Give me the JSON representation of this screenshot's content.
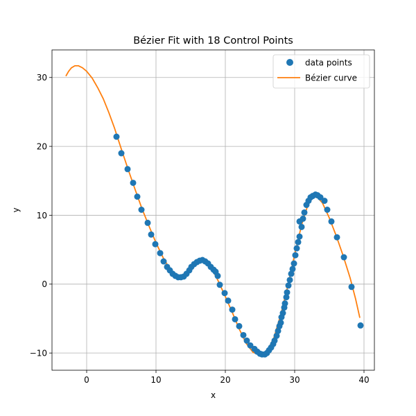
{
  "chart_data": {
    "type": "scatter",
    "title": "Bézier Fit with 18 Control Points",
    "xlabel": "x",
    "ylabel": "y",
    "xlim": [
      -5,
      41.5
    ],
    "ylim": [
      -12.5,
      34
    ],
    "x_ticks": [
      0,
      10,
      20,
      30,
      40
    ],
    "x_tick_labels": [
      "0",
      "10",
      "20",
      "30",
      "40"
    ],
    "y_ticks": [
      -10,
      0,
      10,
      20,
      30
    ],
    "y_tick_labels": [
      "−10",
      "0",
      "10",
      "20",
      "30"
    ],
    "grid": true,
    "legend_position": "top-right",
    "colors": {
      "points": "#1f77b4",
      "curve": "#ff7f0e"
    },
    "series": [
      {
        "name": "data points",
        "kind": "scatter",
        "points": [
          [
            4.3,
            21.4
          ],
          [
            5.0,
            19.0
          ],
          [
            5.9,
            16.7
          ],
          [
            6.7,
            14.7
          ],
          [
            7.3,
            12.7
          ],
          [
            7.9,
            10.8
          ],
          [
            8.8,
            8.9
          ],
          [
            9.3,
            7.2
          ],
          [
            9.9,
            5.8
          ],
          [
            10.6,
            4.5
          ],
          [
            11.1,
            3.3
          ],
          [
            11.6,
            2.5
          ],
          [
            12.0,
            2.0
          ],
          [
            12.4,
            1.5
          ],
          [
            12.8,
            1.2
          ],
          [
            13.2,
            1.0
          ],
          [
            13.6,
            1.0
          ],
          [
            14.0,
            1.1
          ],
          [
            14.4,
            1.5
          ],
          [
            14.8,
            2.0
          ],
          [
            15.1,
            2.5
          ],
          [
            15.5,
            2.9
          ],
          [
            15.9,
            3.2
          ],
          [
            16.3,
            3.4
          ],
          [
            16.7,
            3.5
          ],
          [
            17.1,
            3.3
          ],
          [
            17.5,
            3.0
          ],
          [
            17.9,
            2.5
          ],
          [
            18.3,
            2.1
          ],
          [
            18.6,
            1.8
          ],
          [
            18.9,
            1.2
          ],
          [
            19.2,
            -0.1
          ],
          [
            19.9,
            -1.3
          ],
          [
            20.4,
            -2.4
          ],
          [
            21.0,
            -3.7
          ],
          [
            21.4,
            -5.1
          ],
          [
            22.0,
            -6.1
          ],
          [
            22.6,
            -7.4
          ],
          [
            23.1,
            -8.2
          ],
          [
            23.6,
            -8.9
          ],
          [
            24.2,
            -9.4
          ],
          [
            24.6,
            -9.8
          ],
          [
            25.0,
            -10.1
          ],
          [
            25.3,
            -10.2
          ],
          [
            25.7,
            -10.2
          ],
          [
            26.0,
            -10.0
          ],
          [
            26.3,
            -9.6
          ],
          [
            26.6,
            -9.2
          ],
          [
            26.9,
            -8.7
          ],
          [
            27.1,
            -8.2
          ],
          [
            27.4,
            -7.5
          ],
          [
            27.6,
            -6.8
          ],
          [
            27.8,
            -6.1
          ],
          [
            28.0,
            -5.6
          ],
          [
            28.1,
            -4.8
          ],
          [
            28.3,
            -4.2
          ],
          [
            28.5,
            -3.4
          ],
          [
            28.6,
            -2.8
          ],
          [
            28.8,
            -1.9
          ],
          [
            28.9,
            -1.2
          ],
          [
            29.1,
            -0.2
          ],
          [
            29.3,
            0.6
          ],
          [
            29.5,
            1.5
          ],
          [
            29.7,
            2.2
          ],
          [
            29.9,
            3.0
          ],
          [
            30.1,
            4.2
          ],
          [
            30.3,
            5.2
          ],
          [
            30.5,
            6.1
          ],
          [
            30.7,
            6.9
          ],
          [
            30.7,
            9.1
          ],
          [
            31.0,
            8.3
          ],
          [
            31.2,
            9.5
          ],
          [
            31.4,
            10.4
          ],
          [
            31.7,
            11.5
          ],
          [
            32.0,
            12.1
          ],
          [
            32.3,
            12.6
          ],
          [
            32.6,
            12.8
          ],
          [
            33.0,
            13.0
          ],
          [
            33.3,
            12.9
          ],
          [
            33.7,
            12.6
          ],
          [
            34.3,
            12.1
          ],
          [
            34.7,
            10.8
          ],
          [
            35.3,
            9.1
          ],
          [
            36.1,
            6.8
          ],
          [
            37.1,
            3.9
          ],
          [
            38.2,
            -0.4
          ],
          [
            39.5,
            -6.0
          ]
        ]
      },
      {
        "name": "Bézier curve",
        "kind": "line",
        "points": [
          [
            -3.0,
            30.2
          ],
          [
            -2.6,
            30.9
          ],
          [
            -2.2,
            31.4
          ],
          [
            -1.7,
            31.7
          ],
          [
            -1.2,
            31.7
          ],
          [
            -0.6,
            31.4
          ],
          [
            0.0,
            30.9
          ],
          [
            0.8,
            29.9
          ],
          [
            1.6,
            28.5
          ],
          [
            2.4,
            26.9
          ],
          [
            3.2,
            24.9
          ],
          [
            4.0,
            22.7
          ],
          [
            5.0,
            19.6
          ],
          [
            6.0,
            16.6
          ],
          [
            7.0,
            13.7
          ],
          [
            8.0,
            10.9
          ],
          [
            9.0,
            8.4
          ],
          [
            10.0,
            6.0
          ],
          [
            11.0,
            3.9
          ],
          [
            12.0,
            2.2
          ],
          [
            13.0,
            1.2
          ],
          [
            14.0,
            1.3
          ],
          [
            15.0,
            2.4
          ],
          [
            16.0,
            3.3
          ],
          [
            17.0,
            3.4
          ],
          [
            18.0,
            2.4
          ],
          [
            19.0,
            0.4
          ],
          [
            20.0,
            -1.8
          ],
          [
            21.0,
            -4.1
          ],
          [
            22.0,
            -6.5
          ],
          [
            23.0,
            -8.6
          ],
          [
            24.0,
            -9.9
          ],
          [
            25.0,
            -10.3
          ],
          [
            26.0,
            -9.8
          ],
          [
            27.0,
            -7.8
          ],
          [
            28.0,
            -4.4
          ],
          [
            29.0,
            -0.3
          ],
          [
            30.0,
            4.3
          ],
          [
            31.0,
            8.6
          ],
          [
            32.0,
            11.8
          ],
          [
            33.0,
            12.9
          ],
          [
            34.0,
            11.8
          ],
          [
            35.0,
            9.6
          ],
          [
            36.0,
            7.0
          ],
          [
            37.0,
            4.1
          ],
          [
            38.0,
            0.9
          ],
          [
            38.8,
            -2.2
          ],
          [
            39.4,
            -4.9
          ]
        ]
      }
    ]
  }
}
